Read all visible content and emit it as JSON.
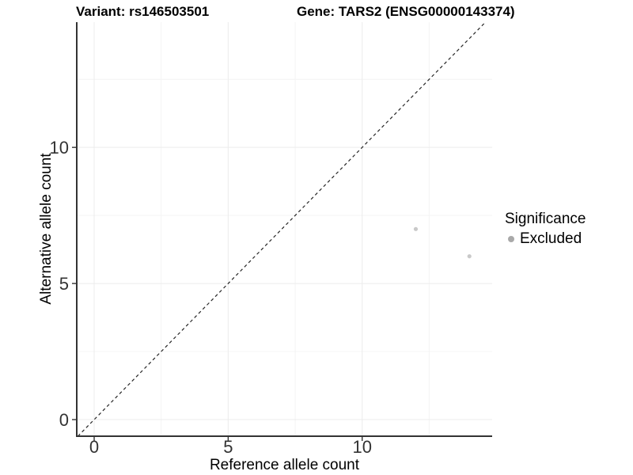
{
  "chart_data": {
    "type": "scatter",
    "title_left": "Variant: rs146503501",
    "title_right": "Gene: TARS2 (ENSG00000143374)",
    "xlabel": "Reference allele count",
    "ylabel": "Alternative allele count",
    "xlim": [
      -0.65,
      14.85
    ],
    "ylim": [
      -0.61,
      14.6
    ],
    "x_ticks": [
      0,
      5,
      10
    ],
    "y_ticks": [
      0,
      5,
      10
    ],
    "x_minor_grid": [
      2.5,
      7.5,
      12.5
    ],
    "y_minor_grid": [
      2.5,
      7.5,
      12.5
    ],
    "grid": "major+minor",
    "identity_line": {
      "shown": true,
      "style": "dashed",
      "slope": 1,
      "intercept": 0
    },
    "series": [
      {
        "name": "Excluded",
        "marker_color": "#c9c9c9",
        "points": [
          {
            "x": 12,
            "y": 7
          },
          {
            "x": 14,
            "y": 6
          }
        ]
      }
    ],
    "legend": {
      "position": "right",
      "title": "Significance",
      "entries": [
        {
          "label": "Excluded",
          "marker_color": "#a9a9a9"
        }
      ]
    },
    "colors": {
      "background": "#ffffff",
      "axis_line": "#333333",
      "tick_mark": "#333333",
      "tick_text": "#333333",
      "grid_major": "#ececec",
      "grid_minor": "#f4f4f4",
      "identity_line": "#262626",
      "point": "#c9c9c9",
      "title_text": "#000000"
    }
  }
}
